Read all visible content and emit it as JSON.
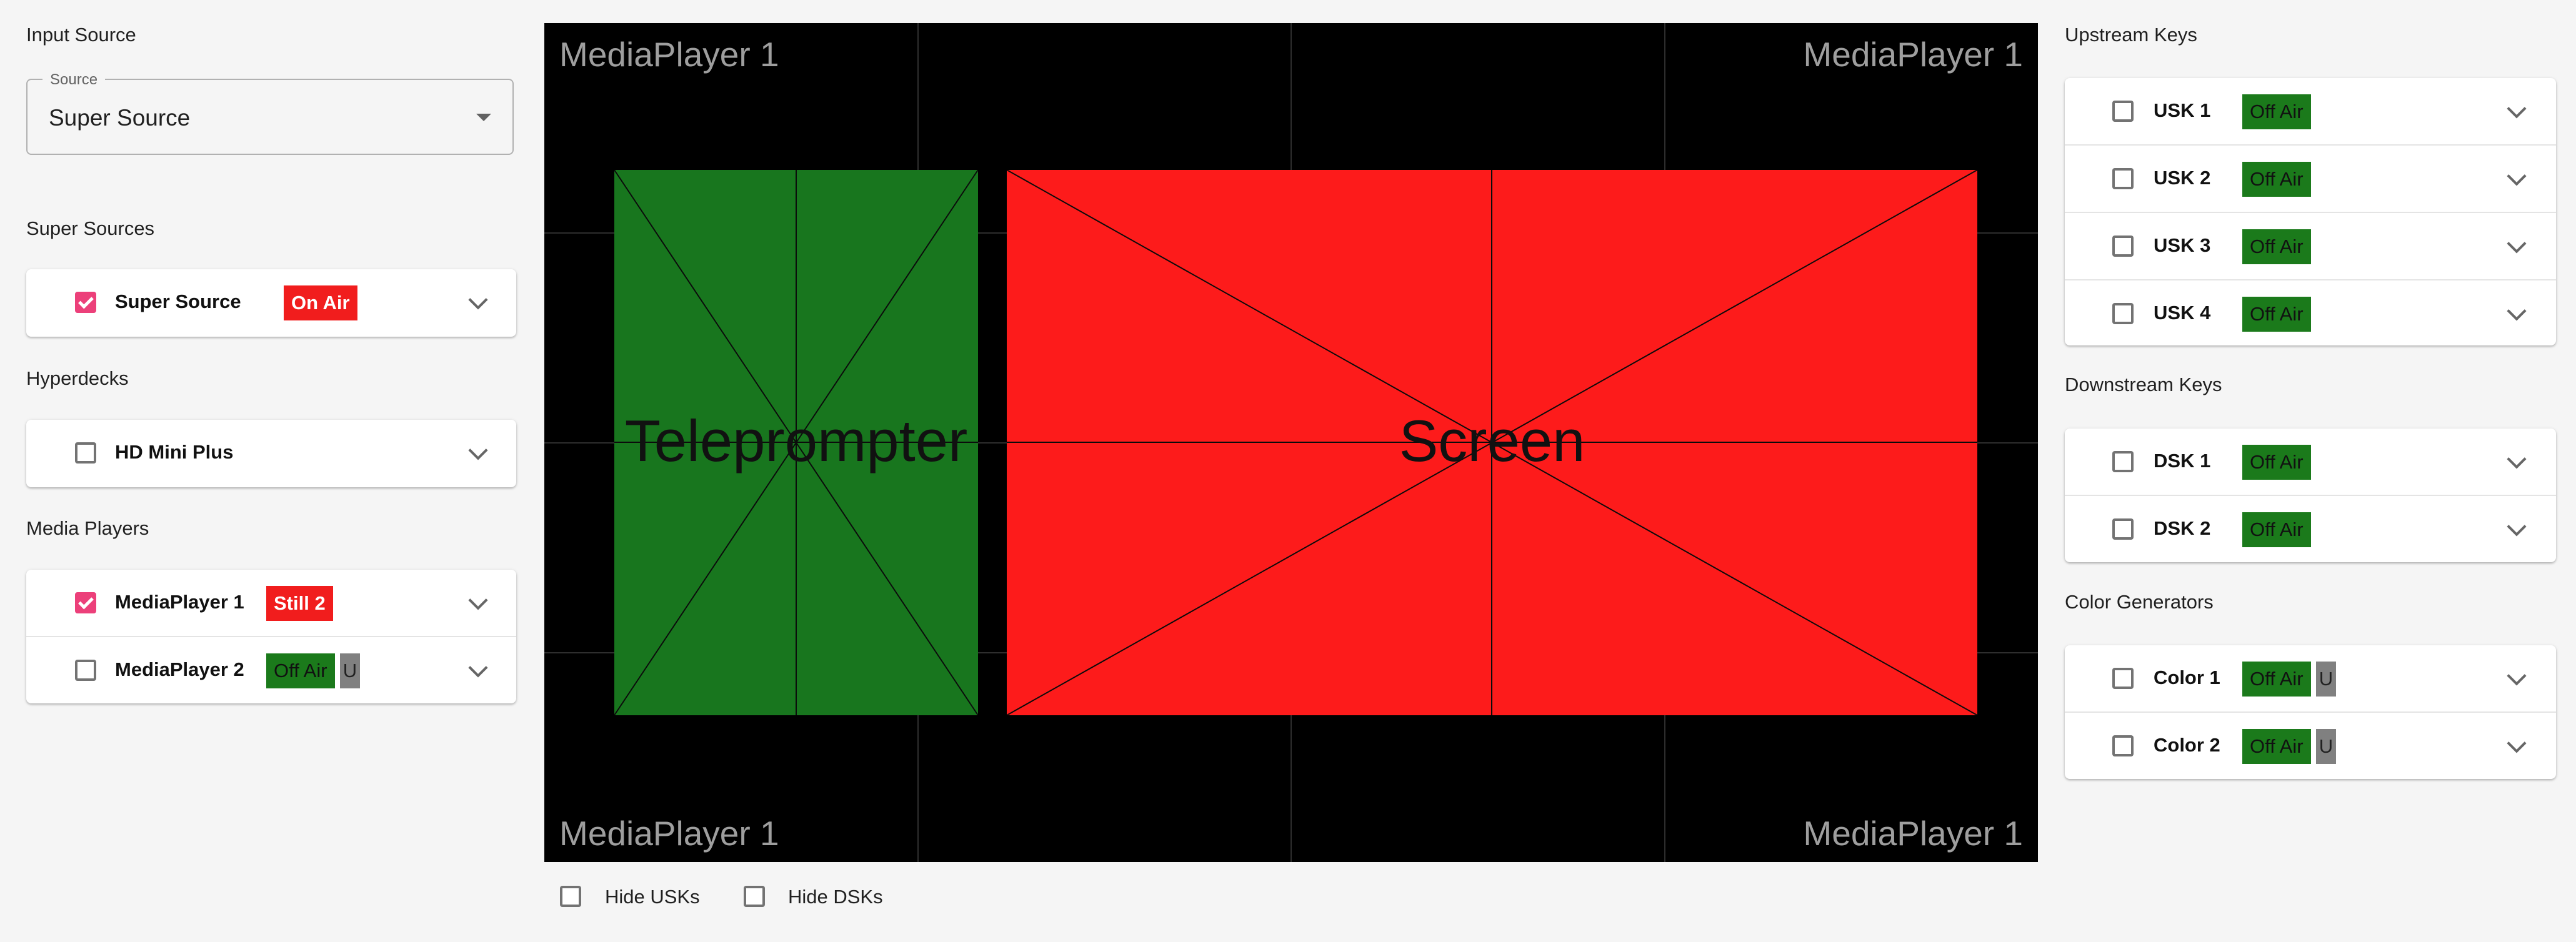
{
  "input_source": {
    "title": "Input Source",
    "select_label": "Source",
    "select_value": "Super Source"
  },
  "super_sources": {
    "title": "Super Sources",
    "items": [
      {
        "label": "Super Source",
        "checked": true,
        "status": "On Air",
        "status_kind": "onair"
      }
    ]
  },
  "hyperdecks": {
    "title": "Hyperdecks",
    "items": [
      {
        "label": "HD Mini Plus",
        "checked": false
      }
    ]
  },
  "media_players": {
    "title": "Media Players",
    "items": [
      {
        "label": "MediaPlayer 1",
        "checked": true,
        "status": "Still 2",
        "status_kind": "onair"
      },
      {
        "label": "MediaPlayer 2",
        "checked": false,
        "status": "Off Air",
        "status_kind": "offair",
        "extra": "U"
      }
    ]
  },
  "preview": {
    "corner_labels": [
      "MediaPlayer 1",
      "MediaPlayer 1",
      "MediaPlayer 1",
      "MediaPlayer 1"
    ],
    "boxes": [
      {
        "label": "Teleprompter",
        "color": "#18761e"
      },
      {
        "label": "Screen",
        "color": "#fd1b1b"
      }
    ]
  },
  "bottom": {
    "hide_usks": "Hide USKs",
    "hide_dsks": "Hide DSKs"
  },
  "upstream_keys": {
    "title": "Upstream Keys",
    "items": [
      {
        "label": "USK 1",
        "checked": false,
        "status": "Off Air"
      },
      {
        "label": "USK 2",
        "checked": false,
        "status": "Off Air"
      },
      {
        "label": "USK 3",
        "checked": false,
        "status": "Off Air"
      },
      {
        "label": "USK 4",
        "checked": false,
        "status": "Off Air"
      }
    ]
  },
  "downstream_keys": {
    "title": "Downstream Keys",
    "items": [
      {
        "label": "DSK 1",
        "checked": false,
        "status": "Off Air"
      },
      {
        "label": "DSK 2",
        "checked": false,
        "status": "Off Air"
      }
    ]
  },
  "color_generators": {
    "title": "Color Generators",
    "items": [
      {
        "label": "Color 1",
        "checked": false,
        "status": "Off Air",
        "extra": "U"
      },
      {
        "label": "Color 2",
        "checked": false,
        "status": "Off Air",
        "extra": "U"
      }
    ]
  },
  "colors": {
    "accent_pink": "#ec407a",
    "on_air_red": "#f11d1d",
    "off_air_green": "#1b7a1b"
  }
}
